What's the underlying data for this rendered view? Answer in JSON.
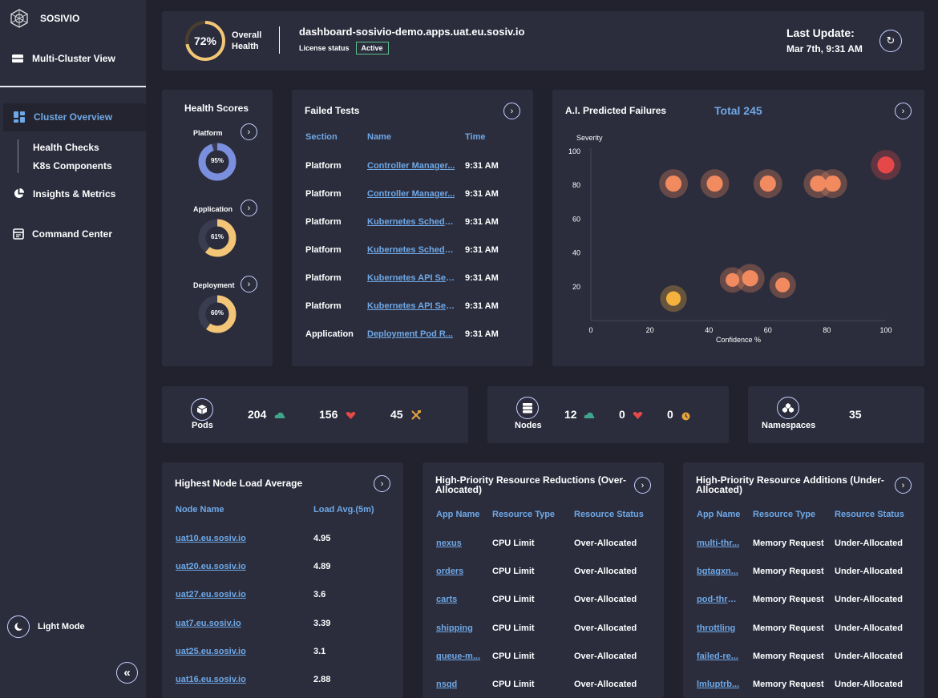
{
  "app": {
    "brand": "SOSIVIO"
  },
  "sidebar": {
    "multi_cluster": "Multi-Cluster View",
    "cluster_overview": "Cluster Overview",
    "health_checks": "Health Checks",
    "k8s_components": "K8s Components",
    "insights": "Insights & Metrics",
    "command_center": "Command Center",
    "light_mode": "Light Mode",
    "collapse_icon": "double-chevron-left-icon"
  },
  "header": {
    "health_percent": "72%",
    "health_value": 72,
    "health_label_1": "Overall",
    "health_label_2": "Health",
    "cluster_host": "dashboard-sosivio-demo.apps.uat.eu.sosiv.io",
    "license_label": "License status",
    "license_status": "Active",
    "last_update_label": "Last Update:",
    "last_update_value": "Mar 7th, 9:31 AM"
  },
  "health_scores": {
    "title": "Health Scores",
    "items": [
      {
        "label": "Platform",
        "value": 95,
        "text": "95%",
        "color": "#7a8fde"
      },
      {
        "label": "Application",
        "value": 61,
        "text": "61%",
        "color": "#f3c577"
      },
      {
        "label": "Deployment",
        "value": 60,
        "text": "60%",
        "color": "#f3c577"
      }
    ]
  },
  "failed_tests": {
    "title": "Failed Tests",
    "headers": [
      "Section",
      "Name",
      "Time"
    ],
    "rows": [
      [
        "Platform",
        "Controller Manager...",
        "9:31 AM"
      ],
      [
        "Platform",
        "Controller Manager...",
        "9:31 AM"
      ],
      [
        "Platform",
        "Kubernetes Schedu...",
        "9:31 AM"
      ],
      [
        "Platform",
        "Kubernetes Schedu...",
        "9:31 AM"
      ],
      [
        "Platform",
        "Kubernetes API Ser...",
        "9:31 AM"
      ],
      [
        "Platform",
        "Kubernetes API Ser...",
        "9:31 AM"
      ],
      [
        "Application",
        "Deployment Pod R...",
        "9:31 AM"
      ]
    ]
  },
  "predicted": {
    "title": "A.I. Predicted Failures",
    "total": "Total 245"
  },
  "chart_data": {
    "type": "scatter",
    "title": "",
    "ylabel": "Severity",
    "xlabel": "Confidence %",
    "xlim": [
      0,
      100
    ],
    "ylim": [
      0,
      100
    ],
    "xticks": [
      "0",
      "20",
      "40",
      "60",
      "80",
      "100"
    ],
    "yticks": [
      "20",
      "40",
      "60",
      "80",
      "100"
    ],
    "points": [
      {
        "x": 28,
        "y": 81,
        "r": 1.0,
        "color": "#f28a60"
      },
      {
        "x": 42,
        "y": 81,
        "r": 1.0,
        "color": "#f28a60"
      },
      {
        "x": 60,
        "y": 81,
        "r": 1.0,
        "color": "#f28a60"
      },
      {
        "x": 77,
        "y": 81,
        "r": 1.0,
        "color": "#f28a60"
      },
      {
        "x": 82,
        "y": 81,
        "r": 1.0,
        "color": "#f28a60"
      },
      {
        "x": 100,
        "y": 92,
        "r": 1.05,
        "color": "#e54848"
      },
      {
        "x": 48,
        "y": 24,
        "r": 0.85,
        "color": "#f28a60"
      },
      {
        "x": 54,
        "y": 25,
        "r": 1.0,
        "color": "#f28a60"
      },
      {
        "x": 65,
        "y": 21,
        "r": 0.9,
        "color": "#f28a60"
      },
      {
        "x": 28,
        "y": 13,
        "r": 0.9,
        "color": "#f3b13e"
      }
    ]
  },
  "kpis": {
    "pods_label": "Pods",
    "pods_healthy": "204",
    "pods_failing": "156",
    "pods_repair": "45",
    "nodes_label": "Nodes",
    "nodes_healthy": "12",
    "nodes_failing": "0",
    "nodes_warn": "0",
    "namespaces_label": "Namespaces",
    "namespaces_count": "35"
  },
  "node_load": {
    "title": "Highest Node Load Average",
    "headers": [
      "Node Name",
      "Load Avg.(5m)"
    ],
    "rows": [
      [
        "uat10.eu.sosiv.io",
        "4.95"
      ],
      [
        "uat20.eu.sosiv.io",
        "4.89"
      ],
      [
        "uat27.eu.sosiv.io",
        "3.6"
      ],
      [
        "uat7.eu.sosiv.io",
        "3.39"
      ],
      [
        "uat25.eu.sosiv.io",
        "3.1"
      ],
      [
        "uat16.eu.sosiv.io",
        "2.88"
      ]
    ]
  },
  "reductions": {
    "title_1": "High-Priority Resource Reductions (Over-",
    "title_2": "Allocated)",
    "headers": [
      "App Name",
      "Resource Type",
      "Resource Status"
    ],
    "rows": [
      [
        "nexus",
        "CPU Limit",
        "Over-Allocated"
      ],
      [
        "orders",
        "CPU Limit",
        "Over-Allocated"
      ],
      [
        "carts",
        "CPU Limit",
        "Over-Allocated"
      ],
      [
        "shipping",
        "CPU Limit",
        "Over-Allocated"
      ],
      [
        "queue-m...",
        "CPU Limit",
        "Over-Allocated"
      ],
      [
        "nsqd",
        "CPU Limit",
        "Over-Allocated"
      ]
    ]
  },
  "additions": {
    "title_1": "High-Priority Resource Additions (Under-",
    "title_2": "Allocated)",
    "headers": [
      "App Name",
      "Resource Type",
      "Resource Status"
    ],
    "rows": [
      [
        "multi-thr...",
        "Memory Request",
        "Under-Allocated"
      ],
      [
        "bgtagxn...",
        "Memory Request",
        "Under-Allocated"
      ],
      [
        "pod-thro...",
        "Memory Request",
        "Under-Allocated"
      ],
      [
        "throttling",
        "Memory Request",
        "Under-Allocated"
      ],
      [
        "failed-re...",
        "Memory Request",
        "Under-Allocated"
      ],
      [
        "lmluptrb...",
        "Memory Request",
        "Under-Allocated"
      ]
    ]
  }
}
